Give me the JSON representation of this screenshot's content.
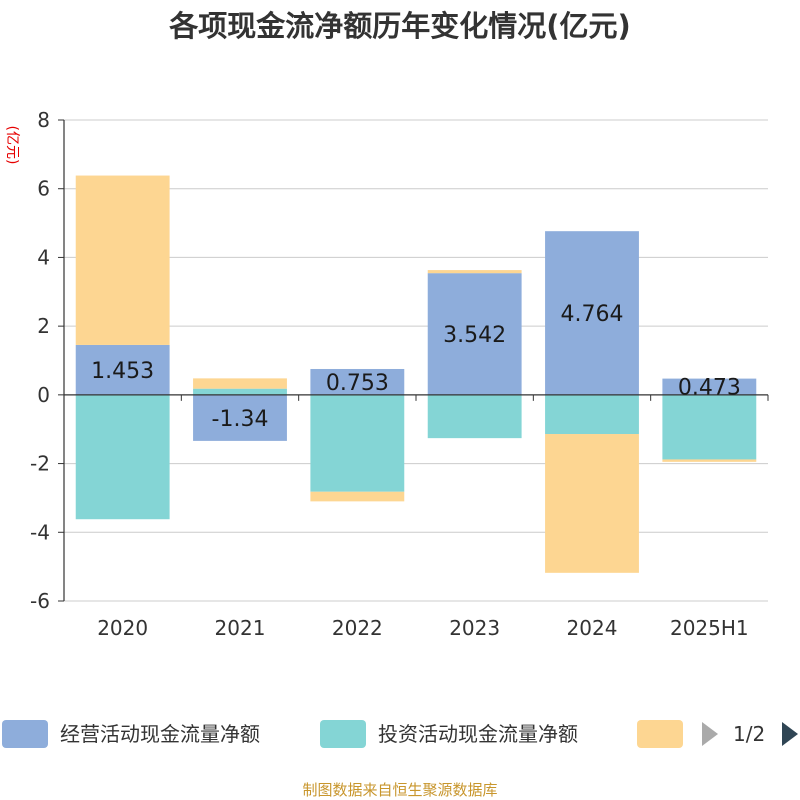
{
  "chart_data": {
    "type": "bar",
    "stacked": true,
    "title": "各项现金流净额历年变化情况(亿元)",
    "ylabel": "(亿元)",
    "categories": [
      "2020",
      "2021",
      "2022",
      "2023",
      "2024",
      "2025H1"
    ],
    "ylim": [
      -6,
      8
    ],
    "yticks": [
      8,
      6,
      4,
      2,
      0,
      -2,
      -4,
      -6
    ],
    "grid": true,
    "series": [
      {
        "name": "经营活动现金流量净额",
        "color": "#8eaddb",
        "values": [
          1.453,
          -1.34,
          0.753,
          3.542,
          4.764,
          0.473
        ],
        "labels": [
          "1.453",
          "-1.34",
          "0.753",
          "3.542",
          "4.764",
          "0.473"
        ]
      },
      {
        "name": "投资活动现金流量净额",
        "color": "#84d5d5",
        "values": [
          -3.62,
          0.18,
          -2.82,
          -1.26,
          -1.14,
          -1.88
        ]
      },
      {
        "name": "",
        "color": "#fdd692",
        "values": [
          4.93,
          0.3,
          -0.28,
          0.09,
          -4.04,
          -0.07
        ]
      }
    ],
    "legend": {
      "position": "bottom",
      "page": "1/2"
    },
    "source": "制图数据来自恒生聚源数据库"
  }
}
